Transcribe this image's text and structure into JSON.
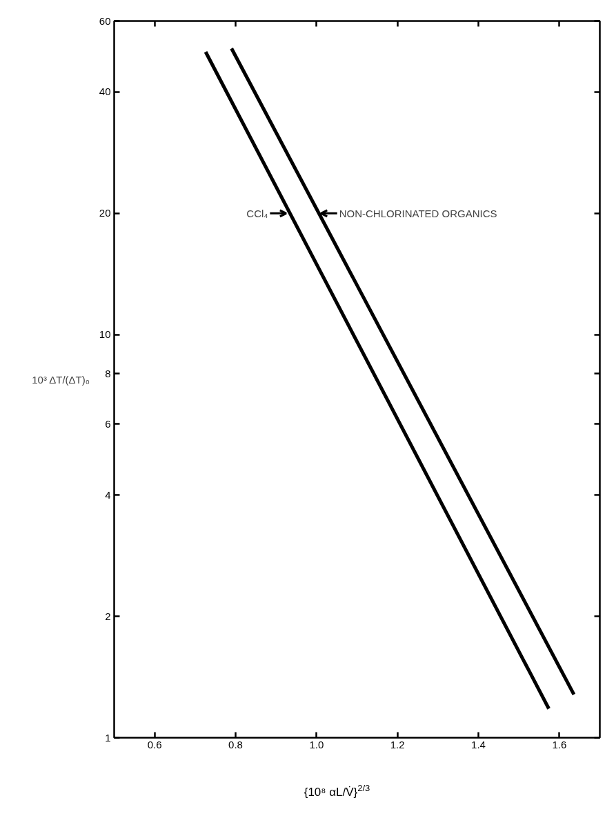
{
  "chart_data": {
    "type": "line",
    "xlabel": "{10⁸ αL/V̇}$^{2/3}$",
    "ylabel": "10³ ΔT/(ΔT)₀",
    "series": [
      {
        "color": "#000000",
        "x": [
          0.726,
          1.574
        ],
        "values": [
          50.3,
          1.18
        ]
      },
      {
        "color": "#000000",
        "x": [
          0.79,
          1.636
        ],
        "values": [
          51.3,
          1.28
        ]
      }
    ],
    "annotations": [
      {
        "text": "CCl₄",
        "x": 0.93,
        "y": 20
      },
      {
        "text": "NON-CHLORINATED ORGANICS",
        "x": 1.006,
        "y": 20
      }
    ],
    "log": "y",
    "grid": false,
    "line_style": "solid",
    "marker": "none",
    "xlim": [
      0.5,
      1.7
    ],
    "xticks": [
      0.6,
      0.8,
      {
        "value": 1,
        "label": "1.0"
      },
      1.2,
      1.4,
      1.6
    ],
    "ylim": [
      1,
      60
    ],
    "yticks": [
      1,
      2,
      4,
      6,
      8,
      10,
      20,
      40,
      60
    ]
  }
}
